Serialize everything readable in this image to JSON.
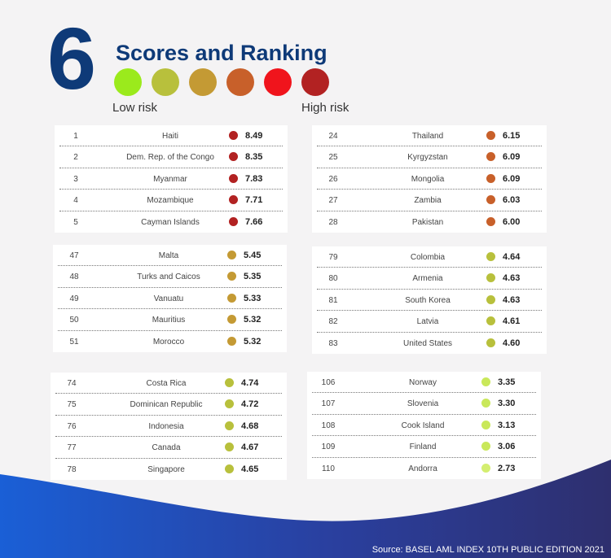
{
  "header": {
    "number": "6",
    "title": "Scores and Ranking",
    "low_label": "Low risk",
    "high_label": "High risk",
    "scale_colors": [
      "#9bea1c",
      "#b8c03c",
      "#c49a34",
      "#c8602a",
      "#f0141c",
      "#b22222"
    ]
  },
  "panels": [
    {
      "rows": [
        {
          "rank": "1",
          "country": "Haiti",
          "score": "8.49",
          "color": "#b22222"
        },
        {
          "rank": "2",
          "country": "Dem. Rep. of the Congo",
          "score": "8.35",
          "color": "#b22222"
        },
        {
          "rank": "3",
          "country": "Myanmar",
          "score": "7.83",
          "color": "#b22222"
        },
        {
          "rank": "4",
          "country": "Mozambique",
          "score": "7.71",
          "color": "#b22222"
        },
        {
          "rank": "5",
          "country": "Cayman Islands",
          "score": "7.66",
          "color": "#b22222"
        }
      ]
    },
    {
      "rows": [
        {
          "rank": "24",
          "country": "Thailand",
          "score": "6.15",
          "color": "#c8602a"
        },
        {
          "rank": "25",
          "country": "Kyrgyzstan",
          "score": "6.09",
          "color": "#c8602a"
        },
        {
          "rank": "26",
          "country": "Mongolia",
          "score": "6.09",
          "color": "#c8602a"
        },
        {
          "rank": "27",
          "country": "Zambia",
          "score": "6.03",
          "color": "#c8602a"
        },
        {
          "rank": "28",
          "country": "Pakistan",
          "score": "6.00",
          "color": "#c8602a"
        }
      ]
    },
    {
      "rows": [
        {
          "rank": "47",
          "country": "Malta",
          "score": "5.45",
          "color": "#c49a34"
        },
        {
          "rank": "48",
          "country": "Turks and Caicos",
          "score": "5.35",
          "color": "#c49a34"
        },
        {
          "rank": "49",
          "country": "Vanuatu",
          "score": "5.33",
          "color": "#c49a34"
        },
        {
          "rank": "50",
          "country": "Mauritius",
          "score": "5.32",
          "color": "#c49a34"
        },
        {
          "rank": "51",
          "country": "Morocco",
          "score": "5.32",
          "color": "#c49a34"
        }
      ]
    },
    {
      "rows": [
        {
          "rank": "79",
          "country": "Colombia",
          "score": "4.64",
          "color": "#b8c03c"
        },
        {
          "rank": "80",
          "country": "Armenia",
          "score": "4.63",
          "color": "#b8c03c"
        },
        {
          "rank": "81",
          "country": "South Korea",
          "score": "4.63",
          "color": "#b8c03c"
        },
        {
          "rank": "82",
          "country": "Latvia",
          "score": "4.61",
          "color": "#b8c03c"
        },
        {
          "rank": "83",
          "country": "United States",
          "score": "4.60",
          "color": "#b8c03c"
        }
      ]
    },
    {
      "rows": [
        {
          "rank": "74",
          "country": "Costa Rica",
          "score": "4.74",
          "color": "#b8c03c"
        },
        {
          "rank": "75",
          "country": "Dominican Republic",
          "score": "4.72",
          "color": "#b8c03c"
        },
        {
          "rank": "76",
          "country": "Indonesia",
          "score": "4.68",
          "color": "#b8c03c"
        },
        {
          "rank": "77",
          "country": "Canada",
          "score": "4.67",
          "color": "#b8c03c"
        },
        {
          "rank": "78",
          "country": "Singapore",
          "score": "4.65",
          "color": "#b8c03c"
        }
      ]
    },
    {
      "rows": [
        {
          "rank": "106",
          "country": "Norway",
          "score": "3.35",
          "color": "#c9e85a"
        },
        {
          "rank": "107",
          "country": "Slovenia",
          "score": "3.30",
          "color": "#c9e85a"
        },
        {
          "rank": "108",
          "country": "Cook Island",
          "score": "3.13",
          "color": "#c9e85a"
        },
        {
          "rank": "109",
          "country": "Finland",
          "score": "3.06",
          "color": "#c9e85a"
        },
        {
          "rank": "110",
          "country": "Andorra",
          "score": "2.73",
          "color": "#d4ee70"
        }
      ]
    }
  ],
  "footer": {
    "source": "Source: BASEL AML INDEX  10TH PUBLIC EDITION 2021"
  }
}
